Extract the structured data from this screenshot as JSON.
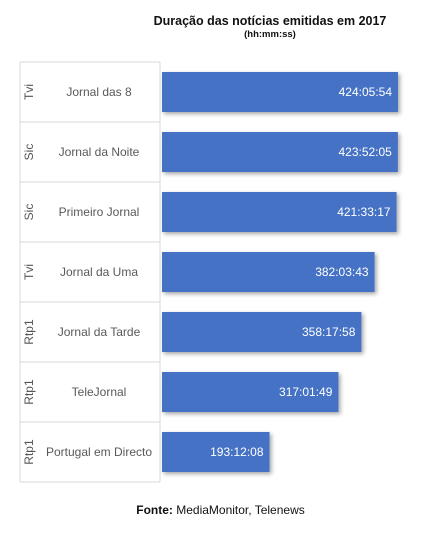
{
  "chart_data": {
    "type": "bar",
    "orientation": "horizontal",
    "title": "Duração das notícias emitidas em 2017",
    "subtitle": "(hh:mm:ss)",
    "groups": [
      "Tvi",
      "Sic",
      "Sic",
      "Tvi",
      "Rtp1",
      "Rtp1",
      "Rtp1"
    ],
    "categories": [
      "Jornal das 8",
      "Jornal da Noite",
      "Primeiro Jornal",
      "Jornal da Uma",
      "Jornal da Tarde",
      "TeleJornal",
      "Portugal em Directo"
    ],
    "values": [
      "424:05:54",
      "423:52:05",
      "421:33:17",
      "382:03:43",
      "358:17:58",
      "317:01:49",
      "193:12:08"
    ],
    "bar_color": "#4472c4",
    "legend": "none",
    "grid": false
  },
  "source": {
    "label": "Fonte:",
    "text": "MediaMonitor, Telenews"
  }
}
